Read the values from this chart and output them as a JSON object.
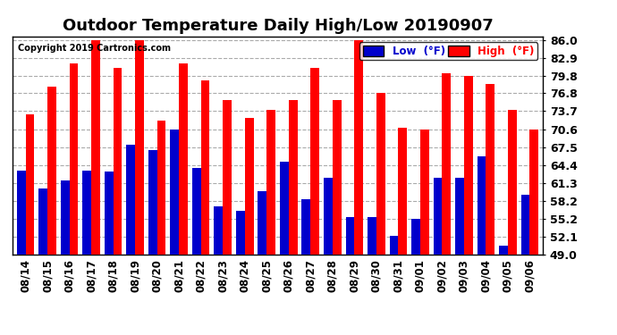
{
  "title": "Outdoor Temperature Daily High/Low 20190907",
  "copyright": "Copyright 2019 Cartronics.com",
  "categories": [
    "08/14",
    "08/15",
    "08/16",
    "08/17",
    "08/18",
    "08/19",
    "08/20",
    "08/21",
    "08/22",
    "08/23",
    "08/24",
    "08/25",
    "08/26",
    "08/27",
    "08/28",
    "08/29",
    "08/30",
    "08/31",
    "09/01",
    "09/02",
    "09/03",
    "09/04",
    "09/05",
    "09/06"
  ],
  "high": [
    73.2,
    77.9,
    82.0,
    86.0,
    81.2,
    86.0,
    72.1,
    82.0,
    79.0,
    75.6,
    72.5,
    73.9,
    75.6,
    81.1,
    75.6,
    86.0,
    76.8,
    70.8,
    70.6,
    80.2,
    79.8,
    78.4,
    73.9,
    70.6
  ],
  "low": [
    63.5,
    60.4,
    61.8,
    63.5,
    63.3,
    68.0,
    67.0,
    70.6,
    64.0,
    57.3,
    56.5,
    60.0,
    65.0,
    58.5,
    62.2,
    55.5,
    55.5,
    52.3,
    55.2,
    62.2,
    62.2,
    65.9,
    50.5,
    59.3
  ],
  "high_color": "#ff0000",
  "low_color": "#0000cc",
  "bg_color": "#ffffff",
  "grid_color": "#aaaaaa",
  "ylim_min": 49.0,
  "ylim_max": 86.0,
  "yticks": [
    49.0,
    52.1,
    55.2,
    58.2,
    61.3,
    64.4,
    67.5,
    70.6,
    73.7,
    76.8,
    79.8,
    82.9,
    86.0
  ],
  "legend_low_label": "Low  (°F)",
  "legend_high_label": "High  (°F)",
  "bar_width": 0.4,
  "title_fontsize": 13,
  "tick_fontsize": 8.5,
  "ytick_fontsize": 9
}
